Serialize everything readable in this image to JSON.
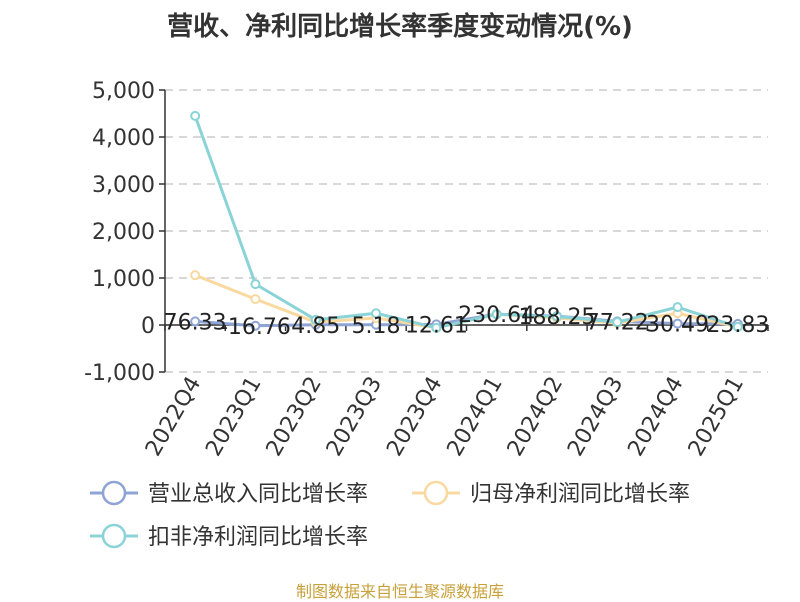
{
  "title": "营收、净利同比增长率季度变动情况(%)",
  "footer": "制图数据来自恒生聚源数据库",
  "chart_data": {
    "type": "line",
    "title": "营收、净利同比增长率季度变动情况(%)",
    "categories": [
      "2022Q4",
      "2023Q1",
      "2023Q2",
      "2023Q3",
      "2023Q4",
      "2024Q1",
      "2024Q2",
      "2024Q3",
      "2024Q4",
      "2025Q1"
    ],
    "ylim": [
      -1000,
      5000
    ],
    "yticks": [
      -1000,
      0,
      1000,
      2000,
      3000,
      4000,
      5000
    ],
    "ytick_labels": [
      "-1,000",
      "0",
      "1,000",
      "2,000",
      "3,000",
      "4,000",
      "5,000"
    ],
    "grid": true,
    "legend_position": "bottom",
    "series": [
      {
        "name": "营业总收入同比增长率",
        "color": "#8ea4d4",
        "values": [
          76.33,
          -16.76,
          4.85,
          5.18,
          12.61,
          230.64,
          188.25,
          77.22,
          30.49,
          23.83
        ],
        "labels": [
          "76.33",
          "-16.76",
          "4.85",
          "5.18",
          "12.61",
          "230.64",
          "188.25",
          "77.22",
          "30.49",
          "23.83"
        ]
      },
      {
        "name": "归母净利润同比增长率",
        "color": "#f9d9a0",
        "values": [
          1060,
          550,
          60,
          150,
          -60,
          230,
          150,
          40,
          250,
          -40
        ]
      },
      {
        "name": "扣非净利润同比增长率",
        "color": "#8ad3d6",
        "values": [
          4450,
          870,
          110,
          250,
          -60,
          230,
          180,
          60,
          380,
          -40
        ]
      }
    ]
  }
}
